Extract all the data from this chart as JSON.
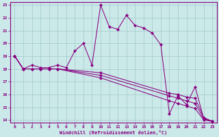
{
  "xlabel": "Windchill (Refroidissement éolien,°C)",
  "xlim": [
    -0.5,
    23.5
  ],
  "ylim": [
    13.8,
    23.2
  ],
  "xticks": [
    0,
    1,
    2,
    3,
    4,
    5,
    6,
    7,
    8,
    9,
    10,
    11,
    12,
    13,
    14,
    15,
    16,
    17,
    18,
    19,
    20,
    21,
    22,
    23
  ],
  "yticks": [
    14,
    15,
    16,
    17,
    18,
    19,
    20,
    21,
    22,
    23
  ],
  "bg_color": "#cbe9e9",
  "grid_color": "#a0c8c8",
  "line_color": "#880080",
  "line1_x": [
    0,
    1,
    2,
    3,
    4,
    5,
    6,
    7,
    8,
    9,
    10,
    11,
    12,
    13,
    14,
    15,
    16,
    17,
    18,
    19,
    20,
    21,
    22,
    23
  ],
  "line1_y": [
    19.0,
    18.0,
    18.3,
    18.1,
    18.1,
    18.3,
    18.1,
    19.4,
    20.0,
    18.3,
    23.0,
    21.3,
    21.1,
    22.2,
    21.4,
    21.2,
    20.8,
    19.9,
    14.5,
    15.9,
    15.2,
    16.6,
    14.1,
    13.9
  ],
  "line2_x": [
    0,
    1,
    2,
    3,
    4,
    5,
    10,
    18,
    19,
    20,
    21,
    22,
    23
  ],
  "line2_y": [
    19.0,
    18.0,
    18.0,
    18.0,
    18.0,
    18.0,
    17.7,
    16.1,
    16.0,
    15.8,
    15.7,
    14.2,
    13.9
  ],
  "line3_x": [
    0,
    1,
    2,
    3,
    4,
    5,
    10,
    18,
    19,
    20,
    21,
    22,
    23
  ],
  "line3_y": [
    19.0,
    18.0,
    18.0,
    18.0,
    18.0,
    18.0,
    17.5,
    15.9,
    15.7,
    15.5,
    15.3,
    14.1,
    13.9
  ],
  "line4_x": [
    0,
    1,
    2,
    3,
    4,
    5,
    10,
    18,
    19,
    20,
    21,
    22,
    23
  ],
  "line4_y": [
    19.0,
    18.0,
    18.0,
    18.0,
    18.0,
    18.0,
    17.3,
    15.5,
    15.3,
    15.1,
    14.9,
    14.0,
    13.9
  ]
}
